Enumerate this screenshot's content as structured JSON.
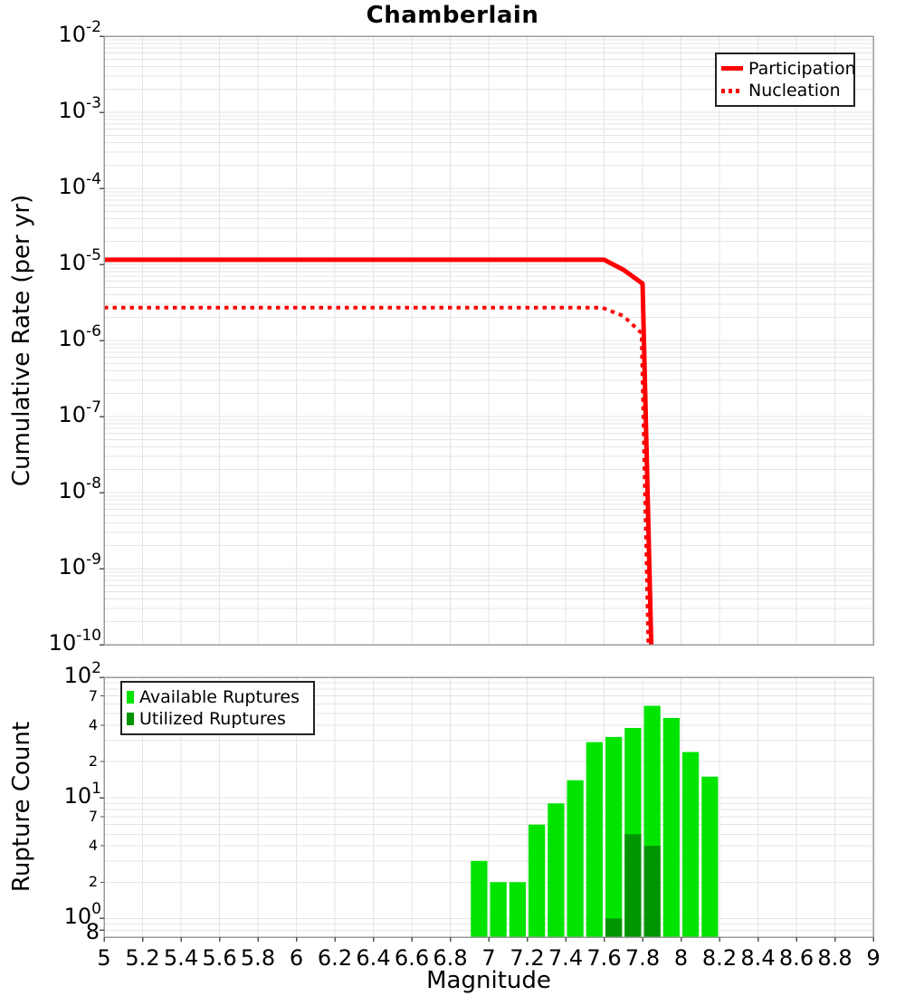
{
  "title": "Chamberlain",
  "colors": {
    "series_red": "#ff0000",
    "available_green": "#00e400",
    "utilized_green": "#009400",
    "grid": "#e4e4e4",
    "frame": "#9b9b9b",
    "tick": "#555555"
  },
  "x_axis": {
    "label": "Magnitude",
    "ticks": [
      {
        "label": "5",
        "value": 5
      },
      {
        "label": "5.2",
        "value": 5.2
      },
      {
        "label": "5.4",
        "value": 5.4
      },
      {
        "label": "5.6",
        "value": 5.6
      },
      {
        "label": "5.8",
        "value": 5.8
      },
      {
        "label": "6",
        "value": 6
      },
      {
        "label": "6.2",
        "value": 6.2
      },
      {
        "label": "6.4",
        "value": 6.4
      },
      {
        "label": "6.6",
        "value": 6.6
      },
      {
        "label": "6.8",
        "value": 6.8
      },
      {
        "label": "7",
        "value": 7
      },
      {
        "label": "7.2",
        "value": 7.2
      },
      {
        "label": "7.4",
        "value": 7.4
      },
      {
        "label": "7.6",
        "value": 7.6
      },
      {
        "label": "7.8",
        "value": 7.8
      },
      {
        "label": "8",
        "value": 8
      },
      {
        "label": "8.2",
        "value": 8.2
      },
      {
        "label": "8.4",
        "value": 8.4
      },
      {
        "label": "8.6",
        "value": 8.6
      },
      {
        "label": "8.8",
        "value": 8.8
      },
      {
        "label": "9",
        "value": 9
      }
    ]
  },
  "chart_data": [
    {
      "type": "line",
      "title": "Chamberlain",
      "ylabel": "Cumulative Rate (per yr)",
      "xlabel": "Magnitude",
      "xlim": [
        5,
        9
      ],
      "ylim": [
        1e-10,
        0.01
      ],
      "yscale": "log",
      "grid": true,
      "legend_position": "top-right",
      "yticks": [
        {
          "exp": "-2",
          "value": 0.01
        },
        {
          "exp": "-3",
          "value": 0.001
        },
        {
          "exp": "-4",
          "value": 0.0001
        },
        {
          "exp": "-5",
          "value": 1e-05
        },
        {
          "exp": "-6",
          "value": 1e-06
        },
        {
          "exp": "-7",
          "value": 1e-07
        },
        {
          "exp": "-8",
          "value": 1e-08
        },
        {
          "exp": "-9",
          "value": 1e-09
        },
        {
          "exp": "-10",
          "value": 1e-10
        }
      ],
      "series": [
        {
          "name": "Participation",
          "style": "solid",
          "color": "#ff0000",
          "points": [
            [
              5,
              1.15e-05
            ],
            [
              7.6,
              1.15e-05
            ],
            [
              7.7,
              8.5e-06
            ],
            [
              7.8,
              5.6e-06
            ],
            [
              7.845,
              1e-10
            ]
          ]
        },
        {
          "name": "Nucleation",
          "style": "dotted",
          "color": "#ff0000",
          "points": [
            [
              5,
              2.7e-06
            ],
            [
              7.59,
              2.7e-06
            ],
            [
              7.7,
              2.1e-06
            ],
            [
              7.795,
              1.25e-06
            ],
            [
              7.83,
              1e-10
            ]
          ]
        }
      ]
    },
    {
      "type": "bar",
      "ylabel": "Rupture Count",
      "xlabel": "Magnitude",
      "xlim": [
        5,
        9
      ],
      "ylim": [
        0.7,
        100
      ],
      "yscale": "log",
      "grid": true,
      "legend_position": "top-left",
      "bin_width": 0.1,
      "yticks_major": [
        {
          "exp": "2",
          "value": 100
        },
        {
          "exp": "1",
          "value": 10
        },
        {
          "exp": "0",
          "value": 1
        }
      ],
      "yticks_minor": [
        {
          "label": "7",
          "value": 70
        },
        {
          "label": "4",
          "value": 40
        },
        {
          "label": "2",
          "value": 20
        },
        {
          "label": "7",
          "value": 7
        },
        {
          "label": "4",
          "value": 4
        },
        {
          "label": "2",
          "value": 2
        }
      ],
      "ytick_bottom": {
        "label": "8",
        "value": 0.8
      },
      "series": [
        {
          "name": "Available Ruptures",
          "color": "#00e400",
          "bins": [
            {
              "start": 6.9,
              "count": 3
            },
            {
              "start": 7.0,
              "count": 2
            },
            {
              "start": 7.1,
              "count": 2
            },
            {
              "start": 7.2,
              "count": 6
            },
            {
              "start": 7.3,
              "count": 9
            },
            {
              "start": 7.4,
              "count": 14
            },
            {
              "start": 7.5,
              "count": 29
            },
            {
              "start": 7.6,
              "count": 32
            },
            {
              "start": 7.7,
              "count": 38
            },
            {
              "start": 7.8,
              "count": 58
            },
            {
              "start": 7.9,
              "count": 46
            },
            {
              "start": 8.0,
              "count": 24
            },
            {
              "start": 8.1,
              "count": 15
            }
          ]
        },
        {
          "name": "Utilized Ruptures",
          "color": "#009400",
          "bins": [
            {
              "start": 7.6,
              "count": 1
            },
            {
              "start": 7.7,
              "count": 5
            },
            {
              "start": 7.8,
              "count": 4
            }
          ]
        }
      ]
    }
  ]
}
